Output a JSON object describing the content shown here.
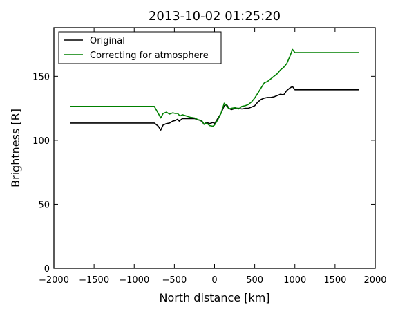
{
  "chart_data": {
    "type": "line",
    "title": "2013-10-02 01:25:20",
    "xlabel": "North distance [km]",
    "ylabel": "Brightness [R]",
    "xlim": [
      -2000,
      2000
    ],
    "ylim": [
      0,
      188
    ],
    "xticks": [
      -2000,
      -1500,
      -1000,
      -500,
      0,
      500,
      1000,
      1500,
      2000
    ],
    "xtick_labels": [
      "−2000",
      "−1500",
      "−1000",
      "−500",
      "0",
      "500",
      "1000",
      "1500",
      "2000"
    ],
    "yticks": [
      0,
      50,
      100,
      150
    ],
    "ytick_labels": [
      "0",
      "50",
      "100",
      "150"
    ],
    "grid": false,
    "legend_position": "upper-left",
    "series": [
      {
        "name": "Original",
        "color": "#000000",
        "x": [
          -1800,
          -750,
          -700,
          -670,
          -640,
          -600,
          -560,
          -520,
          -490,
          -460,
          -440,
          -400,
          -350,
          -300,
          -250,
          -200,
          -160,
          -130,
          -100,
          -60,
          -20,
          0,
          40,
          80,
          120,
          150,
          180,
          210,
          260,
          300,
          340,
          380,
          420,
          460,
          500,
          540,
          580,
          620,
          660,
          700,
          740,
          780,
          820,
          860,
          900,
          940,
          970,
          1000,
          1100,
          1300,
          1500,
          1800
        ],
        "y": [
          113.5,
          113.5,
          111,
          108,
          112,
          113,
          113.5,
          115,
          115.5,
          116.5,
          115,
          117,
          117,
          117,
          117,
          116,
          115,
          112.5,
          114,
          113,
          114,
          113,
          117,
          121,
          127,
          128,
          125,
          124,
          125,
          125,
          124.5,
          125,
          125,
          126,
          127,
          130,
          132,
          133,
          133.5,
          133.5,
          134,
          135,
          136,
          135.5,
          139,
          141,
          142,
          139.5,
          139.5,
          139.5,
          139.5,
          139.5
        ]
      },
      {
        "name": "Correcting for atmosphere",
        "color": "#008000",
        "x": [
          -1800,
          -750,
          -700,
          -670,
          -640,
          -600,
          -560,
          -520,
          -490,
          -460,
          -430,
          -400,
          -350,
          -300,
          -250,
          -200,
          -160,
          -130,
          -100,
          -60,
          -20,
          0,
          40,
          80,
          120,
          150,
          180,
          210,
          260,
          300,
          340,
          380,
          420,
          460,
          500,
          540,
          580,
          620,
          660,
          700,
          740,
          780,
          820,
          860,
          900,
          940,
          970,
          1000,
          1100,
          1300,
          1500,
          1800
        ],
        "y": [
          126.5,
          126.5,
          121,
          117.5,
          121,
          122,
          120.5,
          121.5,
          121,
          121,
          119,
          120,
          119,
          118,
          117.5,
          116,
          115.5,
          112.5,
          113.5,
          111.5,
          111,
          112,
          116,
          121,
          129,
          127,
          124.5,
          125,
          125.5,
          124.5,
          126.5,
          127,
          128,
          130,
          133,
          137,
          141,
          145,
          146,
          148,
          150,
          152,
          155,
          157,
          160,
          166,
          171,
          168.5,
          168.5,
          168.5,
          168.5,
          168.5
        ]
      }
    ]
  }
}
